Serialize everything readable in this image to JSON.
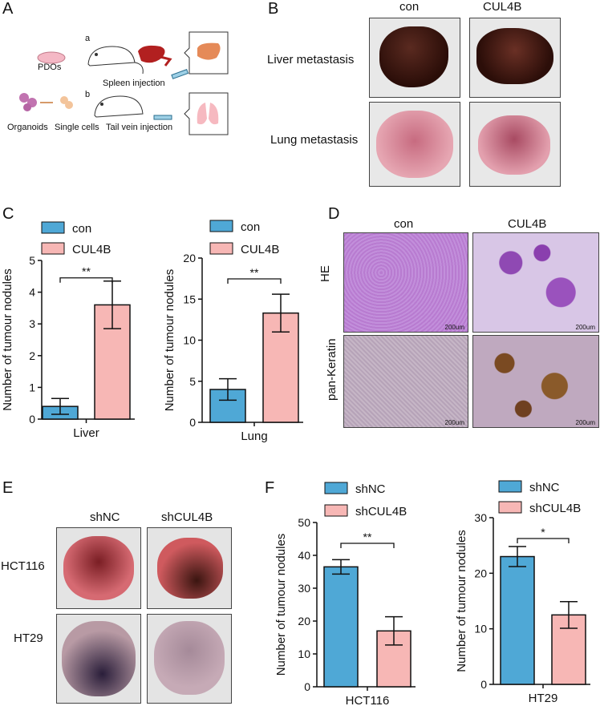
{
  "panels": {
    "A": {
      "letter": "A",
      "pdos": "PDOs",
      "organoids": "Organoids",
      "single_cells": "Single cells",
      "route_a": "a",
      "route_b": "b",
      "spleen_injection": "Spleen injection",
      "tail_vein_injection": "Tail vein injection"
    },
    "B": {
      "letter": "B",
      "col_con": "con",
      "col_cul4b": "CUL4B",
      "row_liver": "Liver metastasis",
      "row_lung": "Lung metastasis"
    },
    "C": {
      "letter": "C"
    },
    "D": {
      "letter": "D",
      "col_con": "con",
      "col_cul4b": "CUL4B",
      "row_he": "HE",
      "row_pk": "pan-Keratin",
      "scalebar": "200um"
    },
    "E": {
      "letter": "E",
      "col_shnc": "shNC",
      "col_shcul4b": "shCUL4B",
      "row_hct116": "HCT116",
      "row_ht29": "HT29"
    },
    "F": {
      "letter": "F"
    }
  },
  "colors": {
    "blue": "#4fa8d6",
    "pink": "#f7b7b5",
    "black": "#111111"
  },
  "chart_data": [
    {
      "id": "C-liver",
      "type": "bar",
      "categories": [
        "con",
        "CUL4B"
      ],
      "values": [
        0.4,
        3.6
      ],
      "errors": [
        0.25,
        0.75
      ],
      "legend": [
        "con",
        "CUL4B"
      ],
      "xlabel": "Liver",
      "ylabel": "Number of tumour nodules",
      "ylim": [
        0,
        5
      ],
      "yticks": [
        0,
        1,
        2,
        3,
        4,
        5
      ],
      "significance": "**"
    },
    {
      "id": "C-lung",
      "type": "bar",
      "categories": [
        "con",
        "CUL4B"
      ],
      "values": [
        4.0,
        13.3
      ],
      "errors": [
        1.3,
        2.3
      ],
      "legend": [
        "con",
        "CUL4B"
      ],
      "xlabel": "Lung",
      "ylabel": "Number of tumour nodules",
      "ylim": [
        0,
        20
      ],
      "yticks": [
        0,
        5,
        10,
        15,
        20
      ],
      "significance": "**"
    },
    {
      "id": "F-hct116",
      "type": "bar",
      "categories": [
        "shNC",
        "shCUL4B"
      ],
      "values": [
        36.5,
        17.0
      ],
      "errors": [
        2.2,
        4.3
      ],
      "legend": [
        "shNC",
        "shCUL4B"
      ],
      "xlabel": "HCT116",
      "ylabel": "Number of tumour nodules",
      "ylim": [
        0,
        50
      ],
      "yticks": [
        0,
        10,
        20,
        30,
        40,
        50
      ],
      "significance": "**"
    },
    {
      "id": "F-ht29",
      "type": "bar",
      "categories": [
        "shNC",
        "shCUL4B"
      ],
      "values": [
        23.0,
        12.5
      ],
      "errors": [
        1.8,
        2.4
      ],
      "legend": [
        "shNC",
        "shCUL4B"
      ],
      "xlabel": "HT29",
      "ylabel": "Number of tumour nodules",
      "ylim": [
        0,
        30
      ],
      "yticks": [
        0,
        10,
        20,
        30
      ],
      "significance": "*"
    }
  ]
}
